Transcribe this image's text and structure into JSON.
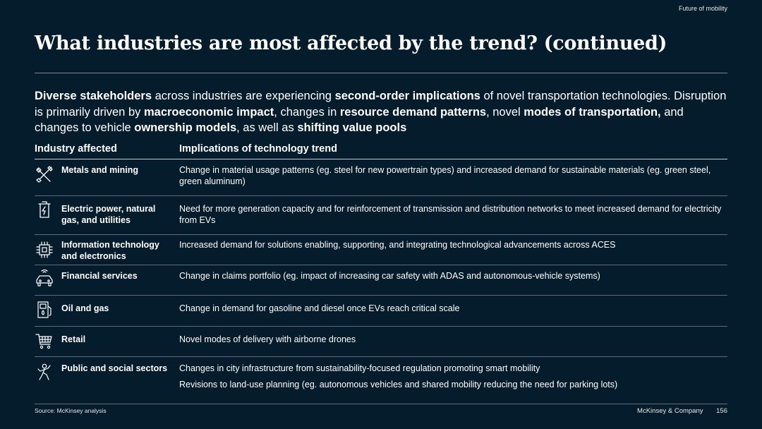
{
  "header": {
    "section_label": "Future of mobility",
    "title": "What industries are most affected by the trend? (continued)"
  },
  "intro": [
    {
      "text": "Diverse stakeholders",
      "bold": true
    },
    {
      "text": " across industries are experiencing ",
      "bold": false
    },
    {
      "text": "second-order implications",
      "bold": true
    },
    {
      "text": " of novel transportation technologies. Disruption is primarily driven by ",
      "bold": false
    },
    {
      "text": "macroeconomic impact",
      "bold": true
    },
    {
      "text": ", changes in ",
      "bold": false
    },
    {
      "text": "resource demand patterns",
      "bold": true
    },
    {
      "text": ", novel ",
      "bold": false
    },
    {
      "text": "modes of transportation,",
      "bold": true
    },
    {
      "text": " and changes to vehicle ",
      "bold": false
    },
    {
      "text": "ownership models",
      "bold": true
    },
    {
      "text": ", as well as ",
      "bold": false
    },
    {
      "text": "shifting value pools",
      "bold": true
    }
  ],
  "table": {
    "headers": {
      "industry": "Industry affected",
      "implications": "Implications of technology trend"
    },
    "rows": [
      {
        "icon": "hammer-wrench-icon",
        "industry": "Metals and mining",
        "implications": [
          "Change in material usage patterns (eg. steel for new powertrain types) and increased demand for sustainable materials (eg. green steel, green aluminum)"
        ]
      },
      {
        "icon": "battery-bolt-icon",
        "industry": "Electric power, natural gas, and utilities",
        "implications": [
          "Need for more generation capacity and for reinforcement of transmission and distribution networks to meet increased demand for electricity from EVs"
        ]
      },
      {
        "icon": "chip-icon",
        "industry": "Information technology and electronics",
        "implications": [
          "Increased demand for solutions enabling, supporting, and integrating technological advancements across ACES"
        ]
      },
      {
        "icon": "connected-car-icon",
        "industry": "Financial services",
        "implications": [
          "Change in claims portfolio (eg. impact of increasing car safety with ADAS and autonomous-vehicle systems)"
        ]
      },
      {
        "icon": "fuel-pump-icon",
        "industry": "Oil and gas",
        "implications": [
          "Change in demand for gasoline and diesel once EVs reach critical scale"
        ]
      },
      {
        "icon": "shopping-cart-icon",
        "industry": "Retail",
        "implications": [
          "Novel modes of delivery with airborne drones"
        ]
      },
      {
        "icon": "person-icon",
        "industry": "Public and social sectors",
        "implications": [
          "Changes in city infrastructure from sustainability-focused regulation promoting smart mobility",
          "Revisions to land-use planning (eg. autonomous vehicles and shared mobility reducing the need for parking lots)"
        ]
      }
    ]
  },
  "footer": {
    "source": "Source: McKinsey analysis",
    "company": "McKinsey & Company",
    "page_number": "156"
  }
}
